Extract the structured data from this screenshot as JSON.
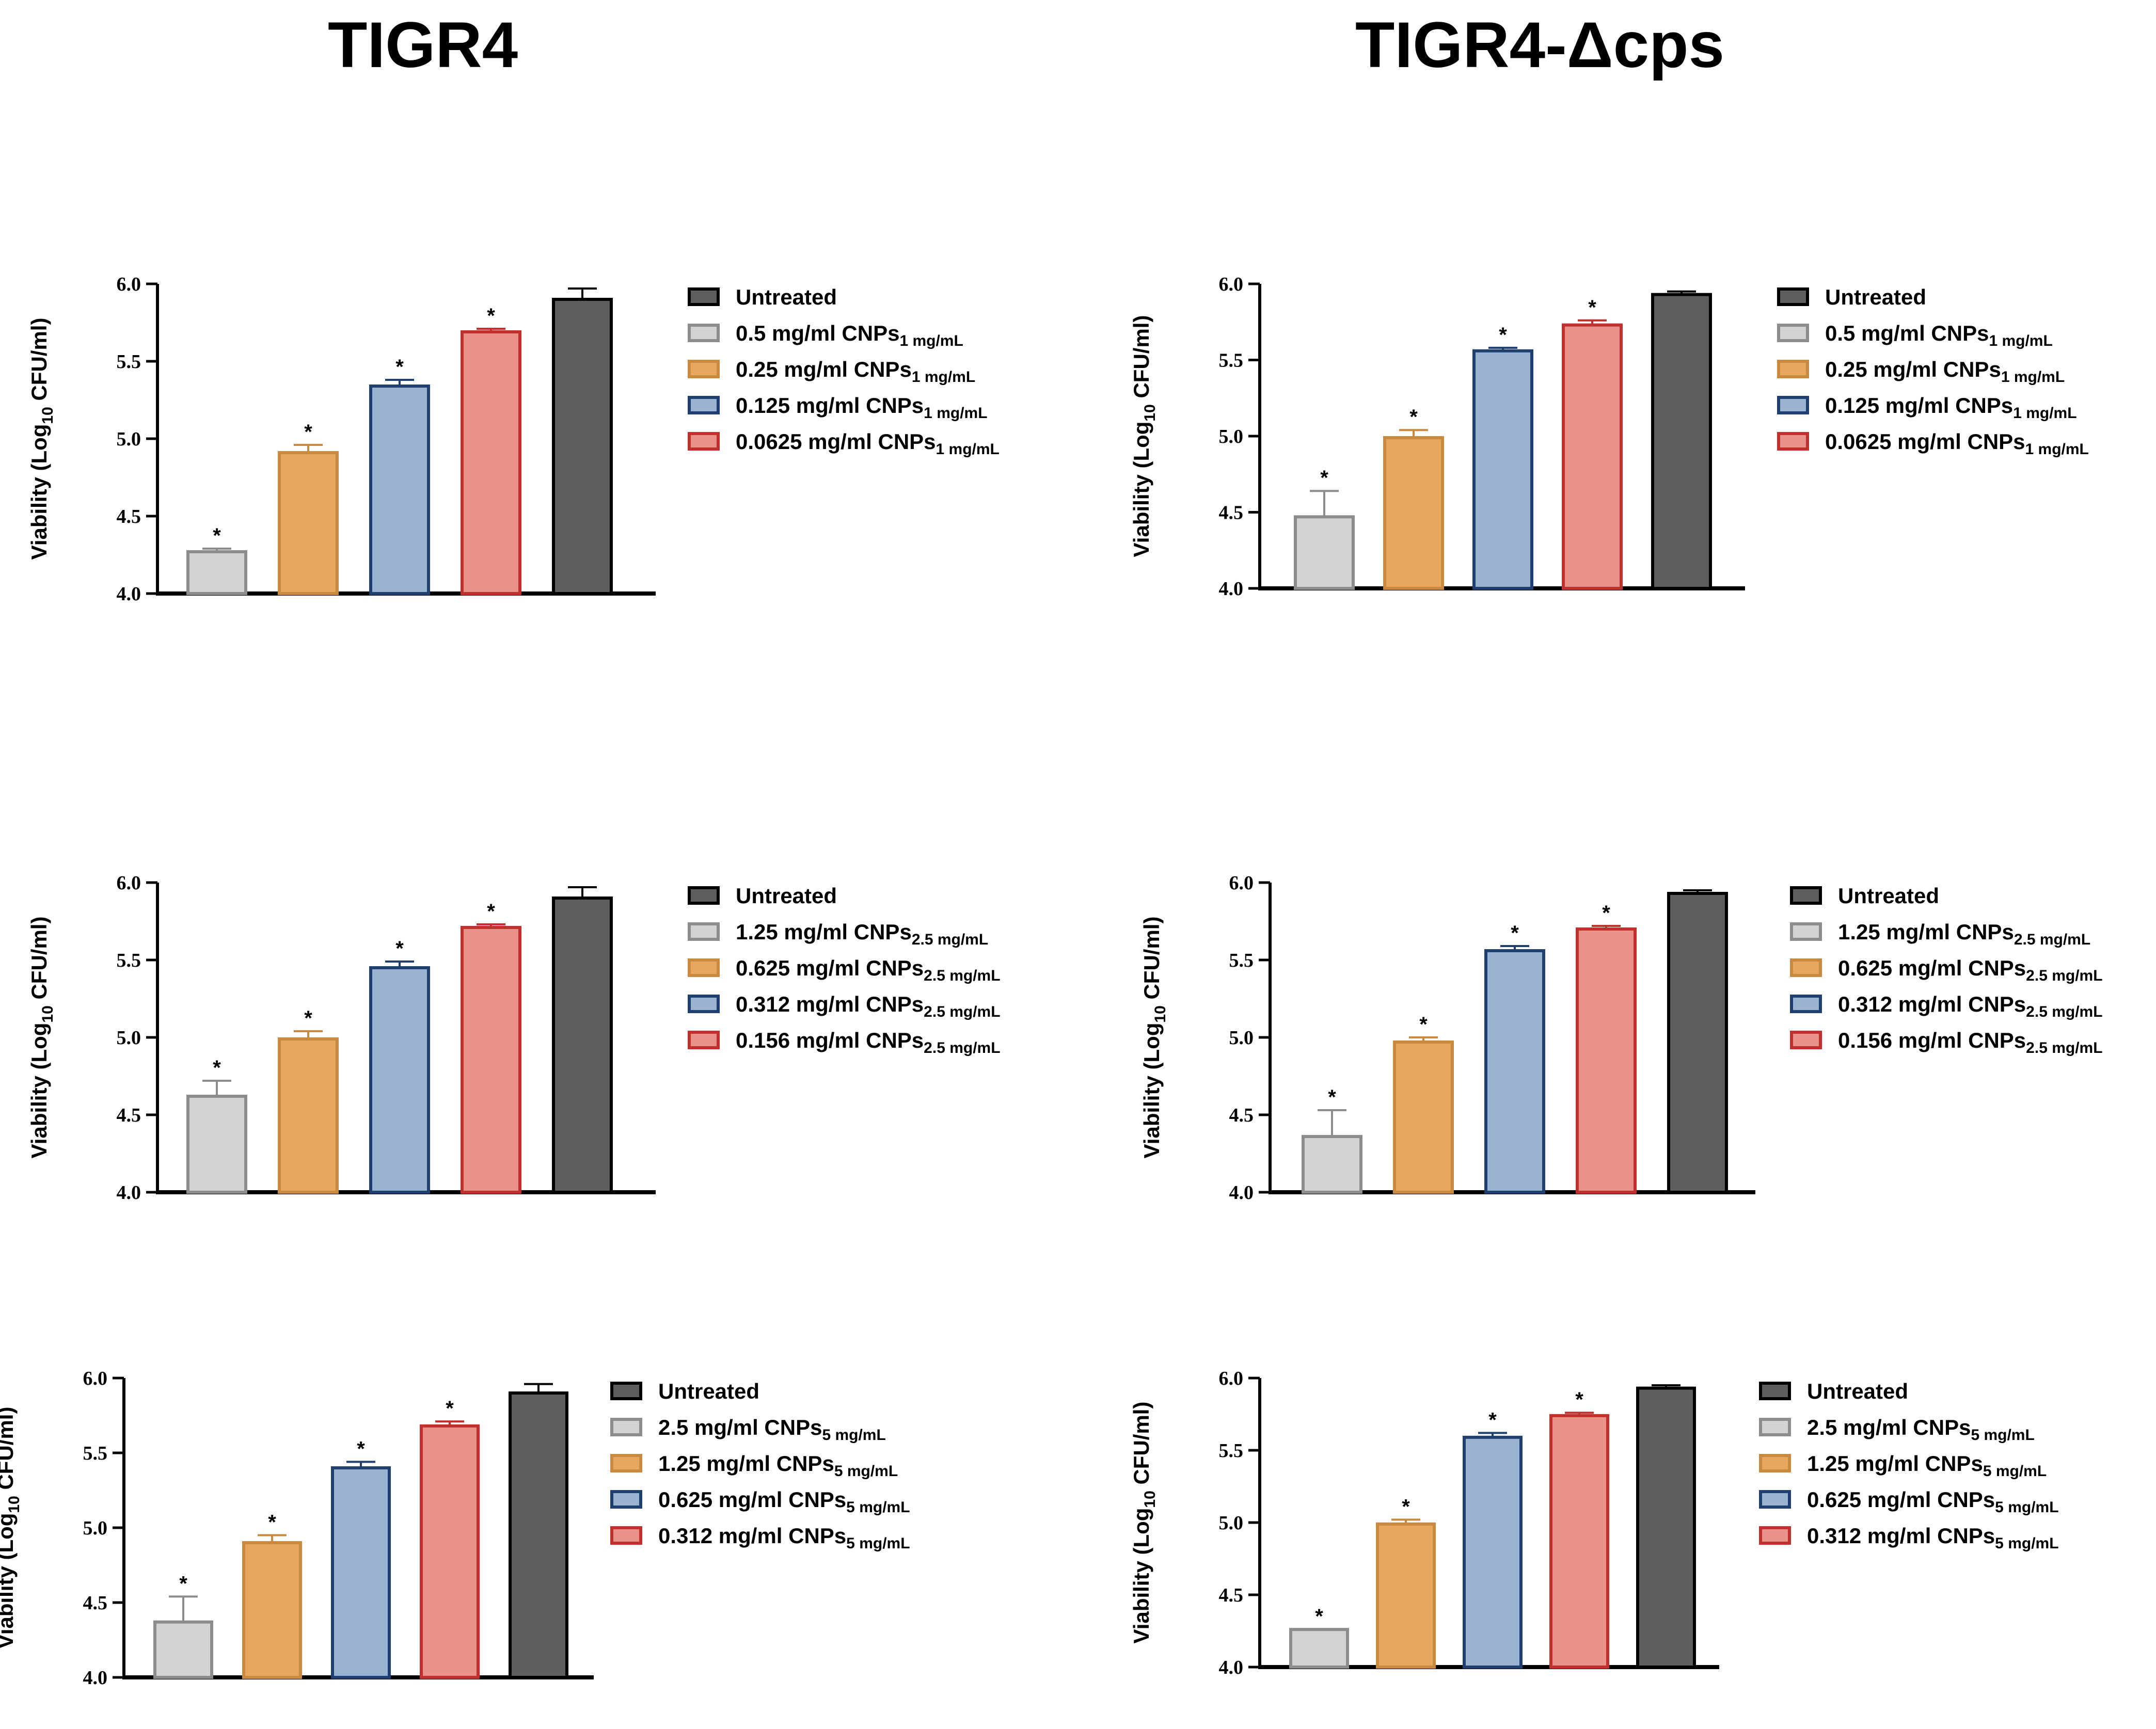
{
  "titles": {
    "left": "TIGR4",
    "right": "TIGR4-Δcps"
  },
  "colors": {
    "gray": {
      "fill": "#d3d3d3",
      "stroke": "#8c8c8c"
    },
    "orange": {
      "fill": "#e9a65e",
      "stroke": "#c98a3e"
    },
    "blue": {
      "fill": "#9ab3d3",
      "stroke": "#1f3f6e"
    },
    "red": {
      "fill": "#e8928a",
      "stroke": "#c0302c"
    },
    "dark": {
      "fill": "#5e5e5e",
      "stroke": "#000000"
    }
  },
  "chart_data": [
    {
      "type": "bar",
      "ylabel": "Viability (Log10 CFU/ml)",
      "ylim": [
        4.0,
        6.0
      ],
      "yticks": [
        "4.0",
        "4.5",
        "5.0",
        "5.5",
        "6.0"
      ],
      "legend_position": "right",
      "legend": [
        {
          "text": "Untreated",
          "sub": "",
          "color": "dark"
        },
        {
          "text": "0.5 mg/ml CNPs",
          "sub": "1 mg/mL",
          "color": "gray"
        },
        {
          "text": "0.25 mg/ml CNPs",
          "sub": "1 mg/mL",
          "color": "orange"
        },
        {
          "text": "0.125 mg/ml CNPs",
          "sub": "1 mg/mL",
          "color": "blue"
        },
        {
          "text": "0.0625 mg/ml CNPs",
          "sub": "1 mg/mL",
          "color": "red"
        }
      ],
      "bars": [
        {
          "value": 4.27,
          "error": 0.02,
          "star": "*",
          "color": "gray"
        },
        {
          "value": 4.91,
          "error": 0.05,
          "star": "*",
          "color": "orange"
        },
        {
          "value": 5.34,
          "error": 0.04,
          "star": "*",
          "color": "blue"
        },
        {
          "value": 5.69,
          "error": 0.02,
          "star": "*",
          "color": "red"
        },
        {
          "value": 5.9,
          "error": 0.07,
          "star": "",
          "color": "dark"
        }
      ]
    },
    {
      "type": "bar",
      "ylabel": "Viability (Log10 CFU/ml)",
      "ylim": [
        4.0,
        6.0
      ],
      "yticks": [
        "4.0",
        "4.5",
        "5.0",
        "5.5",
        "6.0"
      ],
      "legend_position": "right",
      "legend": [
        {
          "text": "Untreated",
          "sub": "",
          "color": "dark"
        },
        {
          "text": "0.5 mg/ml CNPs",
          "sub": "1 mg/mL",
          "color": "gray"
        },
        {
          "text": "0.25 mg/ml CNPs",
          "sub": "1 mg/mL",
          "color": "orange"
        },
        {
          "text": "0.125 mg/ml CNPs",
          "sub": "1 mg/mL",
          "color": "blue"
        },
        {
          "text": "0.0625 mg/ml CNPs",
          "sub": "1 mg/mL",
          "color": "red"
        }
      ],
      "bars": [
        {
          "value": 4.47,
          "error": 0.17,
          "star": "*",
          "color": "gray"
        },
        {
          "value": 4.99,
          "error": 0.05,
          "star": "*",
          "color": "orange"
        },
        {
          "value": 5.56,
          "error": 0.02,
          "star": "*",
          "color": "blue"
        },
        {
          "value": 5.73,
          "error": 0.03,
          "star": "*",
          "color": "red"
        },
        {
          "value": 5.93,
          "error": 0.02,
          "star": "",
          "color": "dark"
        }
      ]
    },
    {
      "type": "bar",
      "ylabel": "Viability (Log10 CFU/ml)",
      "ylim": [
        4.0,
        6.0
      ],
      "yticks": [
        "4.0",
        "4.5",
        "5.0",
        "5.5",
        "6.0"
      ],
      "legend_position": "right",
      "legend": [
        {
          "text": "Untreated",
          "sub": "",
          "color": "dark"
        },
        {
          "text": "1.25 mg/ml CNPs",
          "sub": "2.5 mg/mL",
          "color": "gray"
        },
        {
          "text": "0.625 mg/ml CNPs",
          "sub": "2.5 mg/mL",
          "color": "orange"
        },
        {
          "text": "0.312 mg/ml CNPs",
          "sub": "2.5 mg/mL",
          "color": "blue"
        },
        {
          "text": "0.156 mg/ml CNPs",
          "sub": "2.5 mg/mL",
          "color": "red"
        }
      ],
      "bars": [
        {
          "value": 4.62,
          "error": 0.1,
          "star": "*",
          "color": "gray"
        },
        {
          "value": 4.99,
          "error": 0.05,
          "star": "*",
          "color": "orange"
        },
        {
          "value": 5.45,
          "error": 0.04,
          "star": "*",
          "color": "blue"
        },
        {
          "value": 5.71,
          "error": 0.02,
          "star": "*",
          "color": "red"
        },
        {
          "value": 5.9,
          "error": 0.07,
          "star": "",
          "color": "dark"
        }
      ]
    },
    {
      "type": "bar",
      "ylabel": "Viability (Log10 CFU/ml)",
      "ylim": [
        4.0,
        6.0
      ],
      "yticks": [
        "4.0",
        "4.5",
        "5.0",
        "5.5",
        "6.0"
      ],
      "legend_position": "right",
      "legend": [
        {
          "text": "Untreated",
          "sub": "",
          "color": "dark"
        },
        {
          "text": "1.25 mg/ml CNPs",
          "sub": "2.5 mg/mL",
          "color": "gray"
        },
        {
          "text": "0.625 mg/ml CNPs",
          "sub": "2.5 mg/mL",
          "color": "orange"
        },
        {
          "text": "0.312 mg/ml CNPs",
          "sub": "2.5 mg/mL",
          "color": "blue"
        },
        {
          "text": "0.156 mg/ml CNPs",
          "sub": "2.5 mg/mL",
          "color": "red"
        }
      ],
      "bars": [
        {
          "value": 4.36,
          "error": 0.17,
          "star": "*",
          "color": "gray"
        },
        {
          "value": 4.97,
          "error": 0.03,
          "star": "*",
          "color": "orange"
        },
        {
          "value": 5.56,
          "error": 0.03,
          "star": "*",
          "color": "blue"
        },
        {
          "value": 5.7,
          "error": 0.02,
          "star": "*",
          "color": "red"
        },
        {
          "value": 5.93,
          "error": 0.02,
          "star": "",
          "color": "dark"
        }
      ]
    },
    {
      "type": "bar",
      "ylabel": "Viability (Log10 CFU/ml)",
      "ylim": [
        4.0,
        6.0
      ],
      "yticks": [
        "4.0",
        "4.5",
        "5.0",
        "5.5",
        "6.0"
      ],
      "legend_position": "right",
      "legend": [
        {
          "text": "Untreated",
          "sub": "",
          "color": "dark"
        },
        {
          "text": "2.5 mg/ml CNPs",
          "sub": "5 mg/mL",
          "color": "gray"
        },
        {
          "text": "1.25 mg/ml CNPs",
          "sub": "5 mg/mL",
          "color": "orange"
        },
        {
          "text": "0.625 mg/ml CNPs",
          "sub": "5 mg/mL",
          "color": "blue"
        },
        {
          "text": "0.312 mg/ml CNPs",
          "sub": "5 mg/mL",
          "color": "red"
        }
      ],
      "bars": [
        {
          "value": 4.37,
          "error": 0.17,
          "star": "*",
          "color": "gray"
        },
        {
          "value": 4.9,
          "error": 0.05,
          "star": "*",
          "color": "orange"
        },
        {
          "value": 5.4,
          "error": 0.04,
          "star": "*",
          "color": "blue"
        },
        {
          "value": 5.68,
          "error": 0.03,
          "star": "*",
          "color": "red"
        },
        {
          "value": 5.9,
          "error": 0.06,
          "star": "",
          "color": "dark"
        }
      ]
    },
    {
      "type": "bar",
      "ylabel": "Viability (Log10 CFU/ml)",
      "ylim": [
        4.0,
        6.0
      ],
      "yticks": [
        "4.0",
        "4.5",
        "5.0",
        "5.5",
        "6.0"
      ],
      "legend_position": "right",
      "legend": [
        {
          "text": "Untreated",
          "sub": "",
          "color": "dark"
        },
        {
          "text": "2.5 mg/ml CNPs",
          "sub": "5 mg/mL",
          "color": "gray"
        },
        {
          "text": "1.25 mg/ml CNPs",
          "sub": "5 mg/mL",
          "color": "orange"
        },
        {
          "text": "0.625 mg/ml CNPs",
          "sub": "5 mg/mL",
          "color": "blue"
        },
        {
          "text": "0.312 mg/ml CNPs",
          "sub": "5 mg/mL",
          "color": "red"
        }
      ],
      "bars": [
        {
          "value": 4.26,
          "error": 0.0,
          "star": "*",
          "color": "gray"
        },
        {
          "value": 4.99,
          "error": 0.03,
          "star": "*",
          "color": "orange"
        },
        {
          "value": 5.59,
          "error": 0.03,
          "star": "*",
          "color": "blue"
        },
        {
          "value": 5.74,
          "error": 0.02,
          "star": "*",
          "color": "red"
        },
        {
          "value": 5.93,
          "error": 0.02,
          "star": "",
          "color": "dark"
        }
      ]
    }
  ]
}
